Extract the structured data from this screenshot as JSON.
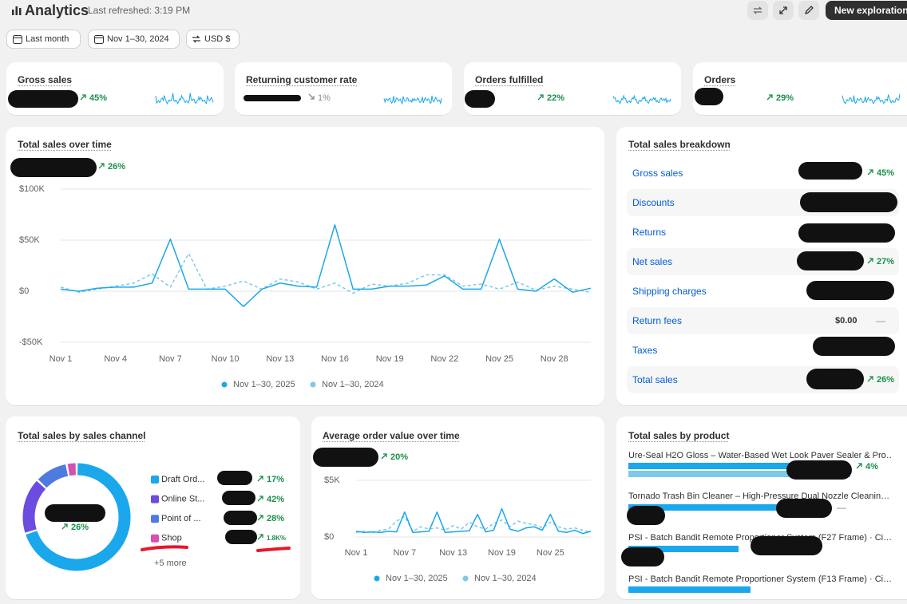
{
  "header": {
    "title": "Analytics",
    "refreshed": "Last refreshed: 3:19 PM",
    "button": "New exploration"
  },
  "filters": [
    "Last month",
    "Nov 1–30, 2024",
    "USD $"
  ],
  "kpis": [
    {
      "title": "Gross sales",
      "change": "45%",
      "trend": "up"
    },
    {
      "title": "Returning customer rate",
      "change": "1%",
      "trend": "down"
    },
    {
      "title": "Orders fulfilled",
      "change": "22%",
      "trend": "up"
    },
    {
      "title": "Orders",
      "change": "29%",
      "trend": "up"
    }
  ],
  "breakdown": {
    "title": "Total sales breakdown",
    "rows": [
      {
        "label": "Gross sales",
        "change": "45%"
      },
      {
        "label": "Discounts"
      },
      {
        "label": "Returns"
      },
      {
        "label": "Net sales",
        "change": "27%"
      },
      {
        "label": "Shipping charges"
      },
      {
        "label": "Return fees",
        "value": "$0.00",
        "change": "—"
      },
      {
        "label": "Taxes"
      },
      {
        "label": "Total sales",
        "change": "26%"
      }
    ]
  },
  "products": {
    "title": "Total sales by product",
    "items": [
      {
        "name": "Ure-Seal H2O Gloss – Water-Based Wet Look Paver Sealer & Pro…",
        "change": "4%"
      },
      {
        "name": "Tornado Trash Bin Cleaner – High-Pressure Dual Nozzle Cleanin…",
        "change": "—"
      },
      {
        "name": "PSI - Batch Bandit Remote Proportioner System (F27 Frame) · Ci…"
      },
      {
        "name": "PSI - Batch Bandit Remote Proportioner System (F13 Frame) · Ci…"
      }
    ]
  },
  "chart_data": [
    {
      "type": "line",
      "title": "Total sales over time",
      "change": "26%",
      "categories": [
        "Nov 1",
        null,
        null,
        "Nov 4",
        null,
        null,
        "Nov 7",
        null,
        null,
        "Nov 10",
        null,
        null,
        "Nov 13",
        null,
        null,
        "Nov 16",
        null,
        null,
        "Nov 19",
        null,
        null,
        "Nov 22",
        null,
        null,
        "Nov 25",
        null,
        null,
        "Nov 28",
        null,
        null
      ],
      "series": [
        {
          "name": "Nov 1–30, 2025",
          "color": "#1aa7ec",
          "dashed": false,
          "values": [
            2000,
            0,
            3000,
            4000,
            4000,
            8000,
            51000,
            2000,
            2000,
            2000,
            -15000,
            2000,
            8000,
            5000,
            4000,
            65000,
            2000,
            2000,
            5000,
            5000,
            6000,
            15000,
            2000,
            2000,
            51000,
            2000,
            0,
            12000,
            -1000,
            3000
          ]
        },
        {
          "name": "Nov 1–30, 2024",
          "color": "#7fc8ea",
          "dashed": true,
          "values": [
            4000,
            -1000,
            2000,
            5000,
            8000,
            17000,
            4000,
            37000,
            2000,
            5000,
            10000,
            2000,
            12000,
            9000,
            2000,
            8000,
            -2000,
            7000,
            5000,
            8000,
            16000,
            16000,
            5000,
            7000,
            2000,
            9000,
            1000,
            5000,
            2000,
            -1000
          ]
        }
      ],
      "ylim": [
        -50000,
        100000
      ],
      "yticks": [
        {
          "value": -50000,
          "label": "-$50K"
        },
        {
          "value": 0,
          "label": "$0"
        },
        {
          "value": 50000,
          "label": "$50K"
        },
        {
          "value": 100000,
          "label": "$100K"
        }
      ],
      "grid": true
    },
    {
      "type": "line",
      "title": "Average order value over time",
      "change": "20%",
      "categories": [
        "Nov 1",
        null,
        null,
        null,
        null,
        null,
        "Nov 7",
        null,
        null,
        null,
        null,
        null,
        "Nov 13",
        null,
        null,
        null,
        null,
        null,
        "Nov 19",
        null,
        null,
        null,
        null,
        null,
        "Nov 25",
        null,
        null,
        null,
        null,
        null
      ],
      "series": [
        {
          "name": "Nov 1–30, 2025",
          "color": "#1aa7ec",
          "dashed": false,
          "values": [
            500,
            400,
            450,
            400,
            500,
            450,
            2200,
            400,
            450,
            500,
            2200,
            400,
            450,
            500,
            550,
            2000,
            450,
            600,
            2500,
            700,
            500,
            800,
            900,
            600,
            2000,
            500,
            400,
            600,
            300,
            500
          ]
        },
        {
          "name": "Nov 1–30, 2024",
          "color": "#7fc8ea",
          "dashed": true,
          "values": [
            400,
            500,
            350,
            600,
            700,
            1400,
            1800,
            500,
            900,
            700,
            800,
            600,
            1000,
            700,
            1300,
            900,
            700,
            1200,
            1500,
            900,
            1400,
            1200,
            1100,
            800,
            1300,
            900,
            700,
            800,
            600,
            400
          ]
        }
      ],
      "ylim": [
        0,
        5000
      ],
      "yticks": [
        {
          "value": 0,
          "label": "$0"
        },
        {
          "value": 5000,
          "label": "$5K"
        }
      ],
      "grid": true
    },
    {
      "type": "pie",
      "title": "Total sales by sales channel",
      "change": "26%",
      "more": "+5 more",
      "categories": [
        "Draft Ord...",
        "Online St...",
        "Point of ...",
        "Shop"
      ],
      "values": [
        70,
        17,
        10,
        3
      ],
      "colors": [
        "#1aa7ec",
        "#6b4be0",
        "#4f7be0",
        "#d650b0"
      ],
      "changes": [
        "17%",
        "42%",
        "28%",
        "1.8K%"
      ]
    }
  ]
}
